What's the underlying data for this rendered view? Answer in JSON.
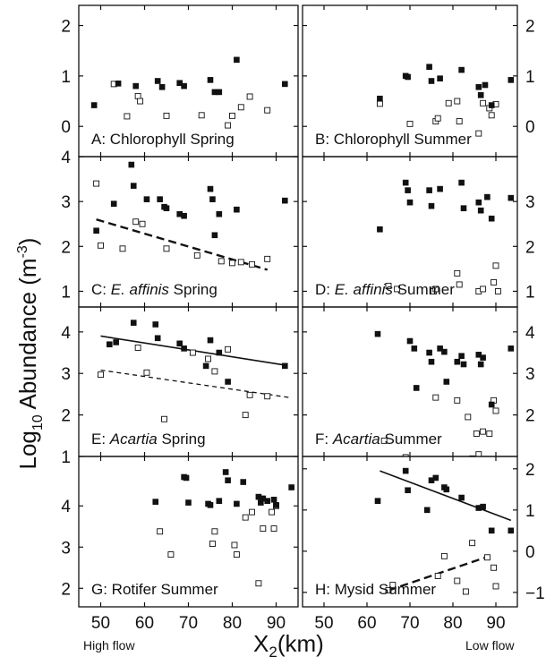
{
  "figure": {
    "y_axis_label": {
      "pre": "Log",
      "sub": "10",
      "post": " Abundance (m",
      "sup": "-3",
      "end": ")"
    },
    "x_axis_label": {
      "pre": "X",
      "sub": "2",
      "post": "(km)"
    },
    "high_flow_label": "High flow",
    "low_flow_label": "Low flow",
    "x_ticks": [
      "50",
      "60",
      "70",
      "80",
      "90"
    ]
  },
  "chart_data": [
    {
      "type": "scatter",
      "panel": "A",
      "label": {
        "pre": "A: ",
        "it": "",
        "post": "Chlorophyll Spring"
      },
      "xlim": [
        45,
        95
      ],
      "ylim": [
        -0.6,
        2.4
      ],
      "y_ticks": [
        0,
        1,
        2
      ],
      "tick_side": "left",
      "filled": [
        [
          48.5,
          0.42
        ],
        [
          54,
          0.85
        ],
        [
          58,
          0.8
        ],
        [
          63,
          0.9
        ],
        [
          64,
          0.78
        ],
        [
          68,
          0.86
        ],
        [
          69,
          0.8
        ],
        [
          75,
          0.92
        ],
        [
          76,
          0.68
        ],
        [
          77,
          0.68
        ],
        [
          81,
          1.32
        ],
        [
          92,
          0.84
        ]
      ],
      "open": [
        [
          53,
          0.84
        ],
        [
          56,
          0.2
        ],
        [
          58.5,
          0.6
        ],
        [
          59,
          0.5
        ],
        [
          65,
          0.21
        ],
        [
          73,
          0.22
        ],
        [
          79,
          0.02
        ],
        [
          80,
          0.21
        ],
        [
          82,
          0.38
        ],
        [
          84,
          0.59
        ],
        [
          88,
          0.32
        ]
      ],
      "lines": []
    },
    {
      "type": "scatter",
      "panel": "B",
      "label": {
        "pre": "B: ",
        "it": "",
        "post": "Chlorophyll Summer"
      },
      "xlim": [
        45,
        95
      ],
      "ylim": [
        -0.6,
        2.4
      ],
      "y_ticks": [
        0,
        1,
        2
      ],
      "tick_side": "right",
      "filled": [
        [
          63,
          0.55
        ],
        [
          69,
          1.0
        ],
        [
          69.5,
          0.98
        ],
        [
          74.5,
          1.18
        ],
        [
          75,
          0.9
        ],
        [
          77,
          0.95
        ],
        [
          82,
          1.12
        ],
        [
          86,
          0.78
        ],
        [
          86.5,
          0.62
        ],
        [
          87.5,
          0.82
        ],
        [
          89,
          0.42
        ],
        [
          93.5,
          0.92
        ]
      ],
      "open": [
        [
          63,
          0.45
        ],
        [
          70,
          0.05
        ],
        [
          76,
          0.1
        ],
        [
          76.5,
          0.16
        ],
        [
          79,
          0.46
        ],
        [
          81,
          0.5
        ],
        [
          81.5,
          0.1
        ],
        [
          86,
          -0.14
        ],
        [
          87,
          0.46
        ],
        [
          88.5,
          0.36
        ],
        [
          89,
          0.22
        ],
        [
          90,
          0.44
        ]
      ],
      "lines": []
    },
    {
      "type": "scatter",
      "panel": "C",
      "label": {
        "pre": "C: ",
        "it": "E. affinis",
        "post": " Spring"
      },
      "xlim": [
        45,
        95
      ],
      "ylim": [
        0.65,
        4.0
      ],
      "y_ticks": [
        1,
        2,
        3,
        4
      ],
      "tick_side": "left",
      "filled": [
        [
          49,
          2.35
        ],
        [
          53,
          2.95
        ],
        [
          57,
          3.82
        ],
        [
          57.5,
          3.35
        ],
        [
          60.5,
          3.05
        ],
        [
          63.5,
          3.05
        ],
        [
          64.5,
          2.88
        ],
        [
          65,
          2.85
        ],
        [
          68,
          2.72
        ],
        [
          69,
          2.68
        ],
        [
          75,
          3.28
        ],
        [
          75.5,
          3.05
        ],
        [
          76,
          2.25
        ],
        [
          77,
          2.72
        ],
        [
          81,
          2.82
        ],
        [
          92,
          3.02
        ]
      ],
      "open": [
        [
          49,
          3.4
        ],
        [
          50,
          2.02
        ],
        [
          55,
          1.95
        ],
        [
          58,
          2.55
        ],
        [
          59.5,
          2.5
        ],
        [
          65,
          1.95
        ],
        [
          72,
          1.8
        ],
        [
          77.5,
          1.67
        ],
        [
          80,
          1.63
        ],
        [
          82,
          1.65
        ],
        [
          84.5,
          1.6
        ],
        [
          88,
          1.72
        ]
      ],
      "lines": [
        {
          "x": [
            49,
            88
          ],
          "y": [
            2.6,
            1.48
          ],
          "style": "dash-long"
        }
      ]
    },
    {
      "type": "scatter",
      "panel": "D",
      "label": {
        "pre": "D: ",
        "it": "E. affinis",
        "post": " Summer"
      },
      "xlim": [
        45,
        95
      ],
      "ylim": [
        0.65,
        4.0
      ],
      "y_ticks": [
        1,
        2,
        3
      ],
      "tick_side": "right",
      "filled": [
        [
          63,
          2.38
        ],
        [
          69,
          3.42
        ],
        [
          69.5,
          3.25
        ],
        [
          70,
          2.98
        ],
        [
          74.5,
          3.25
        ],
        [
          75,
          2.9
        ],
        [
          77,
          3.28
        ],
        [
          82,
          3.42
        ],
        [
          82.5,
          2.85
        ],
        [
          86,
          2.98
        ],
        [
          86.5,
          2.8
        ],
        [
          88,
          3.1
        ],
        [
          89,
          2.62
        ],
        [
          93.5,
          3.08
        ]
      ],
      "open": [
        [
          65,
          1.12
        ],
        [
          67,
          1.05
        ],
        [
          75.5,
          1.0
        ],
        [
          76,
          1.05
        ],
        [
          81,
          1.4
        ],
        [
          81.5,
          1.15
        ],
        [
          86,
          1.0
        ],
        [
          87,
          1.05
        ],
        [
          89.5,
          1.2
        ],
        [
          90,
          1.57
        ],
        [
          90.5,
          1.0
        ]
      ],
      "lines": []
    },
    {
      "type": "scatter",
      "panel": "E",
      "label": {
        "pre": "E: ",
        "it": "Acartia",
        "post": " Spring"
      },
      "xlim": [
        45,
        95
      ],
      "ylim": [
        1.0,
        4.6
      ],
      "y_ticks": [
        1,
        2,
        3,
        4
      ],
      "tick_side": "left",
      "filled": [
        [
          52,
          3.7
        ],
        [
          53.5,
          3.75
        ],
        [
          57.5,
          4.22
        ],
        [
          62.5,
          4.18
        ],
        [
          63,
          3.85
        ],
        [
          68,
          3.72
        ],
        [
          69,
          3.6
        ],
        [
          74,
          3.18
        ],
        [
          75,
          3.8
        ],
        [
          77,
          3.5
        ],
        [
          79,
          2.8
        ],
        [
          92,
          3.18
        ]
      ],
      "open": [
        [
          50,
          2.97
        ],
        [
          58.5,
          3.62
        ],
        [
          60.5,
          3.02
        ],
        [
          64.5,
          1.9
        ],
        [
          71,
          3.5
        ],
        [
          74.5,
          3.35
        ],
        [
          76,
          3.05
        ],
        [
          79,
          3.58
        ],
        [
          83,
          2.0
        ],
        [
          84,
          2.48
        ],
        [
          88,
          2.45
        ]
      ],
      "lines": [
        {
          "x": [
            50,
            92
          ],
          "y": [
            3.9,
            3.2
          ],
          "style": "solid"
        },
        {
          "x": [
            50,
            93
          ],
          "y": [
            3.08,
            2.42
          ],
          "style": "dash"
        }
      ]
    },
    {
      "type": "scatter",
      "panel": "F",
      "label": {
        "pre": "F: ",
        "it": "Acartia",
        "post": " Summer"
      },
      "xlim": [
        45,
        95
      ],
      "ylim": [
        1.0,
        4.6
      ],
      "y_ticks": [
        2,
        3,
        4
      ],
      "tick_side": "right",
      "filled": [
        [
          62.5,
          3.95
        ],
        [
          70,
          3.78
        ],
        [
          71,
          3.6
        ],
        [
          71.5,
          2.65
        ],
        [
          74.5,
          3.5
        ],
        [
          75,
          3.28
        ],
        [
          77,
          3.6
        ],
        [
          78,
          3.52
        ],
        [
          78.5,
          2.8
        ],
        [
          81,
          3.28
        ],
        [
          82,
          3.42
        ],
        [
          82.5,
          3.22
        ],
        [
          86,
          3.45
        ],
        [
          86.5,
          3.22
        ],
        [
          87,
          3.38
        ],
        [
          89,
          2.25
        ],
        [
          93.5,
          3.6
        ]
      ],
      "open": [
        [
          64,
          1.38
        ],
        [
          69,
          0.98
        ],
        [
          76,
          2.42
        ],
        [
          81,
          2.35
        ],
        [
          83.5,
          1.95
        ],
        [
          84.5,
          0.95
        ],
        [
          85.5,
          1.55
        ],
        [
          86,
          1.05
        ],
        [
          87,
          1.6
        ],
        [
          88.5,
          1.55
        ],
        [
          89.5,
          2.35
        ],
        [
          90,
          2.1
        ]
      ],
      "lines": []
    },
    {
      "type": "scatter",
      "panel": "G",
      "label": {
        "pre": "G: ",
        "it": "",
        "post": "Rotifer Summer"
      },
      "xlim": [
        45,
        95
      ],
      "ylim": [
        1.55,
        5.2
      ],
      "y_ticks": [
        2,
        3,
        4
      ],
      "tick_side": "left",
      "filled": [
        [
          62.5,
          4.1
        ],
        [
          69,
          4.7
        ],
        [
          69.5,
          4.68
        ],
        [
          70,
          4.08
        ],
        [
          74.5,
          4.05
        ],
        [
          75,
          4.02
        ],
        [
          77,
          4.12
        ],
        [
          78.5,
          4.82
        ],
        [
          79,
          4.62
        ],
        [
          81,
          4.05
        ],
        [
          82.5,
          4.58
        ],
        [
          86,
          4.22
        ],
        [
          86.5,
          4.08
        ],
        [
          87,
          4.18
        ],
        [
          88,
          4.12
        ],
        [
          89.5,
          4.15
        ],
        [
          90,
          4.02
        ],
        [
          93.5,
          4.45
        ]
      ],
      "open": [
        [
          63.5,
          3.38
        ],
        [
          66,
          2.82
        ],
        [
          75.5,
          3.08
        ],
        [
          76,
          3.38
        ],
        [
          80.5,
          3.05
        ],
        [
          81,
          2.82
        ],
        [
          83,
          3.72
        ],
        [
          84.5,
          3.85
        ],
        [
          86,
          2.12
        ],
        [
          87,
          3.45
        ],
        [
          89,
          3.85
        ],
        [
          89.5,
          3.45
        ],
        [
          90,
          4.0
        ]
      ],
      "lines": []
    },
    {
      "type": "scatter",
      "panel": "H",
      "label": {
        "pre": "H: ",
        "it": "",
        "post": "Mysid Summer"
      },
      "xlim": [
        45,
        95
      ],
      "ylim": [
        -1.35,
        2.3
      ],
      "y_ticks": [
        -1,
        0,
        1,
        2
      ],
      "tick_side": "right",
      "filled": [
        [
          62.5,
          1.22
        ],
        [
          69,
          1.95
        ],
        [
          69.5,
          1.48
        ],
        [
          74,
          1.0
        ],
        [
          75,
          1.72
        ],
        [
          76,
          1.78
        ],
        [
          78,
          1.55
        ],
        [
          78.5,
          1.5
        ],
        [
          82,
          1.3
        ],
        [
          86,
          1.05
        ],
        [
          87,
          1.08
        ],
        [
          89,
          0.5
        ],
        [
          93.5,
          0.5
        ]
      ],
      "open": [
        [
          65,
          -0.95
        ],
        [
          66,
          -0.82
        ],
        [
          76.5,
          -0.6
        ],
        [
          78,
          -0.12
        ],
        [
          81,
          -0.72
        ],
        [
          83,
          -0.98
        ],
        [
          84.5,
          0.2
        ],
        [
          88,
          -0.15
        ],
        [
          89.5,
          -0.4
        ],
        [
          90,
          -0.85
        ]
      ],
      "lines": [
        {
          "x": [
            63,
            93.5
          ],
          "y": [
            1.95,
            0.75
          ],
          "style": "solid"
        },
        {
          "x": [
            65,
            88.5
          ],
          "y": [
            -0.95,
            -0.12
          ],
          "style": "dash-long"
        }
      ]
    }
  ]
}
